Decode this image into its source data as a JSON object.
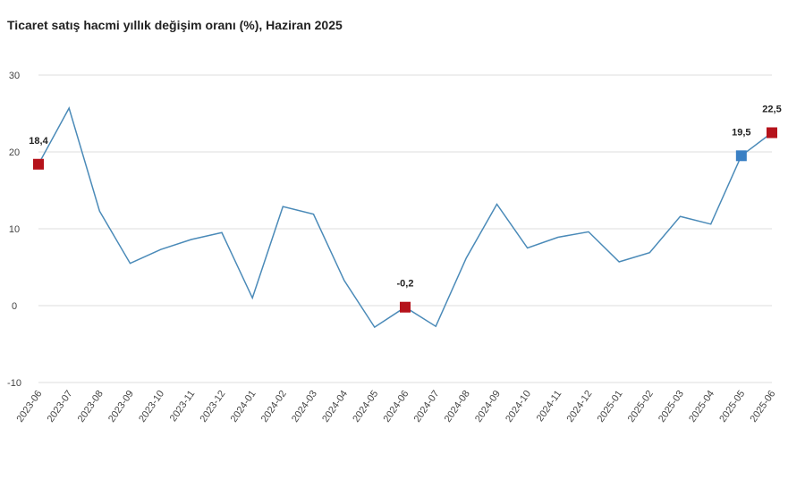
{
  "chart_data": {
    "type": "line",
    "title": "Ticaret satış hacmi yıllık değişim oranı (%), Haziran 2025",
    "xlabel": "",
    "ylabel": "",
    "ylim": [
      -10,
      30
    ],
    "yticks": [
      "30",
      "20",
      "10",
      "0",
      "-10"
    ],
    "grid": "horizontal",
    "line_color": "#4a8ab8",
    "categories": [
      "2023-06",
      "2023-07",
      "2023-08",
      "2023-09",
      "2023-10",
      "2023-11",
      "2023-12",
      "2024-01",
      "2024-02",
      "2024-03",
      "2024-04",
      "2024-05",
      "2024-06",
      "2024-07",
      "2024-08",
      "2024-09",
      "2024-10",
      "2024-11",
      "2024-12",
      "2025-01",
      "2025-02",
      "2025-03",
      "2025-04",
      "2025-05",
      "2025-06"
    ],
    "series": [
      {
        "values": [
          18.4,
          25.7,
          12.3,
          5.5,
          7.3,
          8.6,
          9.5,
          1.0,
          12.9,
          11.9,
          3.3,
          -2.8,
          -0.2,
          -2.7,
          6.2,
          13.2,
          7.5,
          8.9,
          9.6,
          5.7,
          6.9,
          11.6,
          10.6,
          19.5,
          22.5
        ]
      }
    ],
    "highlighted_points": [
      {
        "index": 0,
        "label": "18,4",
        "color": "#b5121b"
      },
      {
        "index": 12,
        "label": "-0,2",
        "color": "#b5121b"
      },
      {
        "index": 23,
        "label": "19,5",
        "color": "#3a80c4"
      },
      {
        "index": 24,
        "label": "22,5",
        "color": "#b5121b"
      }
    ]
  }
}
